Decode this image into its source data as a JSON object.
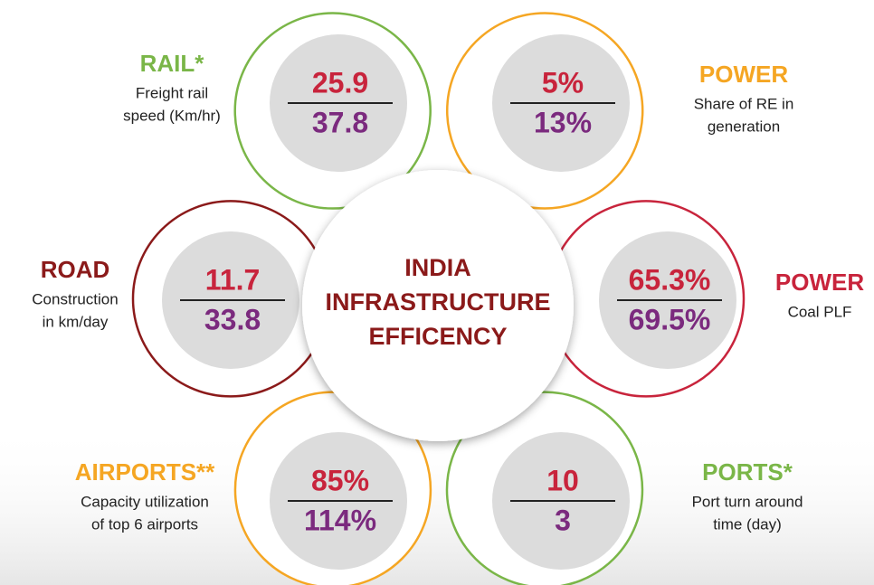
{
  "title": {
    "lines": [
      "INDIA",
      "INFRASTRUCTURE",
      "EFFICENCY"
    ]
  },
  "sectors": [
    {
      "label": "RAIL*",
      "description": [
        "Freight rail",
        "speed (Km/hr)"
      ],
      "top": "25.9",
      "bottom": "37.8"
    },
    {
      "label": "POWER",
      "description": [
        "Share of RE in",
        "generation"
      ],
      "top": "5%",
      "bottom": "13%"
    },
    {
      "label": "ROAD",
      "description": [
        "Construction",
        "in km/day"
      ],
      "top": "11.7",
      "bottom": "33.8"
    },
    {
      "label": "POWER",
      "description": [
        "Coal PLF"
      ],
      "top": "65.3%",
      "bottom": "69.5%"
    },
    {
      "label": "AIRPORTS**",
      "description": [
        "Capacity utilization",
        "of top 6 airports"
      ],
      "top": "85%",
      "bottom": "114%"
    },
    {
      "label": "PORTS*",
      "description": [
        "Port turn around",
        "time (day)"
      ],
      "top": "10",
      "bottom": "3"
    }
  ]
}
